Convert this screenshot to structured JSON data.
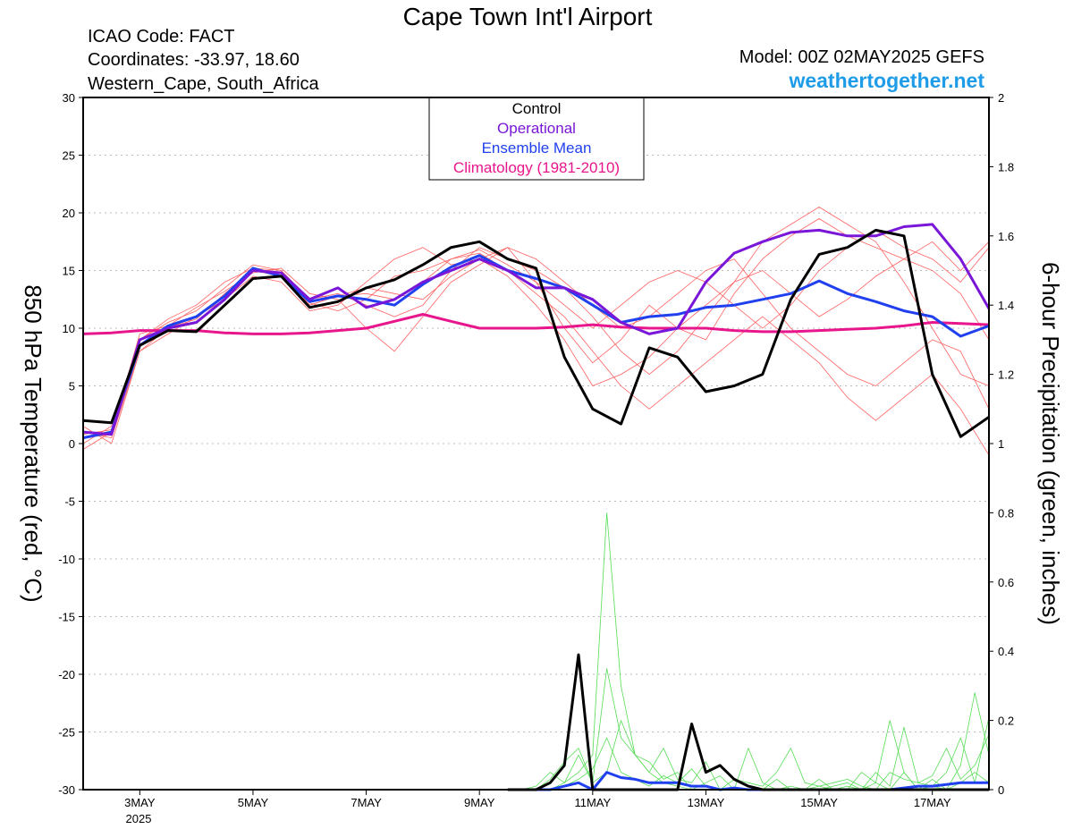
{
  "chart_data": {
    "type": "line",
    "title": "Cape Town Int'l Airport",
    "info": [
      "ICAO Code: FACT",
      "Coordinates: -33.97, 18.60",
      "Western_Cape, South_Africa"
    ],
    "model": "Model: 00Z 02MAY2025 GEFS",
    "source": "weathertogether.net",
    "ylabel": "850 hPa Temperature (red, °C)",
    "y2label": "6-hour Precipitation (green, inches)",
    "x_year": "2025",
    "xlim": [
      0,
      16
    ],
    "xticks": [
      {
        "value": 1,
        "label": "3MAY"
      },
      {
        "value": 3,
        "label": "5MAY"
      },
      {
        "value": 5,
        "label": "7MAY"
      },
      {
        "value": 7,
        "label": "9MAY"
      },
      {
        "value": 9,
        "label": "11MAY"
      },
      {
        "value": 11,
        "label": "13MAY"
      },
      {
        "value": 13,
        "label": "15MAY"
      },
      {
        "value": 15,
        "label": "17MAY"
      }
    ],
    "ylim": [
      -30,
      30
    ],
    "yticks": [
      -30,
      -25,
      -20,
      -15,
      -10,
      -5,
      0,
      5,
      10,
      15,
      20,
      25,
      30
    ],
    "y2lim": [
      0,
      2
    ],
    "y2ticks": [
      0,
      0.2,
      0.4,
      0.6,
      0.8,
      1,
      1.2,
      1.4,
      1.6,
      1.8,
      2
    ],
    "grid": true,
    "x": [
      0,
      0.5,
      1,
      1.5,
      2,
      2.5,
      3,
      3.5,
      4,
      4.5,
      5,
      5.5,
      6,
      6.5,
      7,
      7.5,
      8,
      8.5,
      9,
      9.5,
      10,
      10.5,
      11,
      11.5,
      12,
      12.5,
      13,
      13.5,
      14,
      14.5,
      15,
      15.5,
      16
    ],
    "series": [
      {
        "color": "#ff6060",
        "values": [
          1,
          0.5,
          8,
          10,
          10.8,
          13,
          15,
          14.5,
          12,
          12.8,
          13,
          12.5,
          14,
          16,
          16.8,
          15.5,
          14,
          10,
          7,
          9,
          12,
          10,
          9,
          13,
          16,
          18,
          19.5,
          18,
          17,
          16,
          15,
          13,
          9
        ]
      },
      {
        "color": "#ff6060",
        "values": [
          0,
          1.5,
          9,
          10.5,
          11.5,
          13.5,
          15.5,
          15,
          12.5,
          13,
          12,
          11,
          12,
          15,
          17,
          16,
          15,
          13.5,
          11,
          8,
          6,
          8,
          11,
          14,
          17.5,
          19,
          20.5,
          19,
          17.5,
          14,
          10,
          6,
          5
        ]
      },
      {
        "color": "#ff6060",
        "values": [
          0.5,
          0.8,
          8.5,
          10,
          11,
          12.5,
          14.5,
          14,
          11.5,
          12,
          14,
          16,
          17,
          15.5,
          16,
          14.5,
          12,
          9,
          5,
          6,
          7.5,
          10,
          12,
          14,
          15,
          13,
          11,
          12.5,
          14.5,
          16,
          17.5,
          15,
          17.5
        ]
      },
      {
        "color": "#ff6060",
        "values": [
          -0.5,
          1,
          9.5,
          10.2,
          11.8,
          13.2,
          14.8,
          15.2,
          13,
          12.5,
          10,
          8,
          11,
          14,
          15.5,
          17,
          16,
          14,
          12,
          10,
          11,
          13,
          15,
          16,
          13,
          10,
          8,
          6,
          5,
          7,
          9,
          8,
          3
        ]
      },
      {
        "color": "#ff6060",
        "values": [
          1.5,
          0,
          8,
          9.5,
          11,
          12.8,
          15,
          14.8,
          12.2,
          11.5,
          12.5,
          14.5,
          15,
          16,
          16.5,
          15,
          13,
          11,
          8,
          5,
          3,
          5,
          7,
          9,
          11,
          9,
          7,
          4,
          2,
          4,
          6,
          3,
          -1
        ]
      },
      {
        "color": "#ff6060",
        "values": [
          0.8,
          1.2,
          9,
          10.8,
          12,
          14,
          15.2,
          15,
          12,
          12.8,
          13.5,
          13,
          12.5,
          14.5,
          16,
          17,
          14,
          12,
          10,
          12,
          14,
          15,
          14,
          12,
          10,
          12,
          15,
          17,
          18.5,
          17,
          16,
          14,
          17
        ]
      },
      {
        "name": "Climatology (1981-2010)",
        "color": "#e8168c",
        "values": [
          9.5,
          9.6,
          9.8,
          9.8,
          9.8,
          9.6,
          9.5,
          9.5,
          9.6,
          9.8,
          10,
          10.6,
          11.2,
          10.6,
          10,
          10,
          10,
          10.1,
          10.3,
          10.1,
          10,
          10,
          10,
          9.8,
          9.7,
          9.7,
          9.8,
          9.9,
          10,
          10.2,
          10.5,
          10.4,
          10.3
        ]
      },
      {
        "name": "Ensemble Mean",
        "color": "#2040f0",
        "values": [
          0.5,
          1,
          8.5,
          10.2,
          11,
          12.8,
          15.2,
          14.5,
          12.3,
          12.8,
          12.5,
          12,
          13.8,
          15.3,
          16.3,
          15,
          14.3,
          13.5,
          12,
          10.5,
          11,
          11.2,
          11.8,
          12,
          12.5,
          13,
          14.1,
          13,
          12.3,
          11.5,
          11,
          9.3,
          10.2
        ]
      },
      {
        "name": "Operational",
        "color": "#7a16d8",
        "values": [
          1,
          0.8,
          9,
          10,
          10.5,
          12.5,
          15,
          14.8,
          12.5,
          13.5,
          11.8,
          12.5,
          14,
          15,
          16,
          15,
          13.5,
          13.5,
          12.5,
          10.5,
          9.5,
          10,
          14,
          16.5,
          17.5,
          18.3,
          18.5,
          18,
          18,
          18.8,
          19,
          16,
          11.7
        ]
      },
      {
        "name": "Control",
        "color": "#000000",
        "values": [
          2,
          1.8,
          8.5,
          9.8,
          9.7,
          12,
          14.3,
          14.5,
          11.8,
          12.3,
          13.5,
          14.2,
          15.5,
          17,
          17.5,
          16,
          15.2,
          7.5,
          3,
          1.7,
          8.3,
          7.5,
          4.5,
          5,
          6,
          12.5,
          16.4,
          17,
          18.5,
          18,
          6,
          0.6,
          2.3
        ]
      }
    ],
    "x_precip": [
      7.5,
      7.75,
      8,
      8.25,
      8.5,
      8.75,
      9,
      9.25,
      9.5,
      9.75,
      10,
      10.25,
      10.5,
      10.75,
      11,
      11.25,
      11.5,
      11.75,
      12,
      12.25,
      12.5,
      12.75,
      13,
      13.25,
      13.5,
      13.75,
      14,
      14.25,
      14.5,
      14.75,
      15,
      15.25,
      15.5,
      15.75,
      16
    ],
    "precip_series": [
      {
        "axis": "y2",
        "color": "#55dd55",
        "values": [
          0,
          0,
          0,
          0,
          0.02,
          0.05,
          0.1,
          0.8,
          0.3,
          0.1,
          0.05,
          0.02,
          0.01,
          0,
          0,
          0,
          0,
          0,
          0,
          0,
          0,
          0,
          0.03,
          0,
          0.01,
          0,
          0.02,
          0,
          0.05,
          0,
          0.01,
          0,
          0.02,
          0.05,
          0.02
        ]
      },
      {
        "axis": "y2",
        "color": "#55dd55",
        "values": [
          0,
          0,
          0,
          0.03,
          0.08,
          0.12,
          0.02,
          0.35,
          0.15,
          0.1,
          0.08,
          0.03,
          0.05,
          0,
          0.02,
          0.04,
          0,
          0.12,
          0.02,
          0,
          0.01,
          0,
          0.01,
          0,
          0,
          0.05,
          0.02,
          0.2,
          0.05,
          0,
          0.03,
          0,
          0.07,
          0.28,
          0.1
        ]
      },
      {
        "axis": "y2",
        "color": "#55dd55",
        "values": [
          0,
          0,
          0.01,
          0.05,
          0.02,
          0.1,
          0.02,
          0.05,
          0.2,
          0.1,
          0.05,
          0.12,
          0.03,
          0.02,
          0.08,
          0,
          0.03,
          0.02,
          0.01,
          0.05,
          0.12,
          0.02,
          0.01,
          0.02,
          0.03,
          0.01,
          0,
          0.05,
          0.03,
          0.02,
          0.04,
          0.12,
          0.03,
          0.07,
          0.16
        ]
      },
      {
        "axis": "y2",
        "color": "#55dd55",
        "values": [
          0,
          0,
          0,
          0,
          0.01,
          0.03,
          0.06,
          0.15,
          0.05,
          0.03,
          0.01,
          0.04,
          0.02,
          0.06,
          0.01,
          0,
          0,
          0,
          0,
          0.03,
          0,
          0,
          0,
          0.01,
          0.02,
          0,
          0.05,
          0.01,
          0.18,
          0.02,
          0.01,
          0.05,
          0.15,
          0.02,
          0.21
        ]
      },
      {
        "axis": "y2",
        "color": "#2040f0",
        "values": [
          0,
          0,
          0,
          0,
          0.01,
          0.02,
          0,
          0.05,
          0.035,
          0.03,
          0.02,
          0.02,
          0.02,
          0.01,
          0.01,
          0,
          0.005,
          0,
          0,
          0,
          0,
          0,
          0,
          0,
          0,
          0,
          0,
          0,
          0.005,
          0.01,
          0.01,
          0.015,
          0.02,
          0.02,
          0.02
        ]
      },
      {
        "axis": "y2",
        "color": "#000000",
        "values": [
          0,
          0,
          0,
          0.02,
          0.07,
          0.39,
          0,
          0,
          0,
          0,
          0,
          0,
          0,
          0.19,
          0.05,
          0.07,
          0.03,
          0.01,
          0,
          0,
          0,
          0,
          0,
          0,
          0,
          0,
          0,
          0,
          0,
          0,
          0,
          0,
          0,
          0,
          0
        ]
      }
    ]
  }
}
